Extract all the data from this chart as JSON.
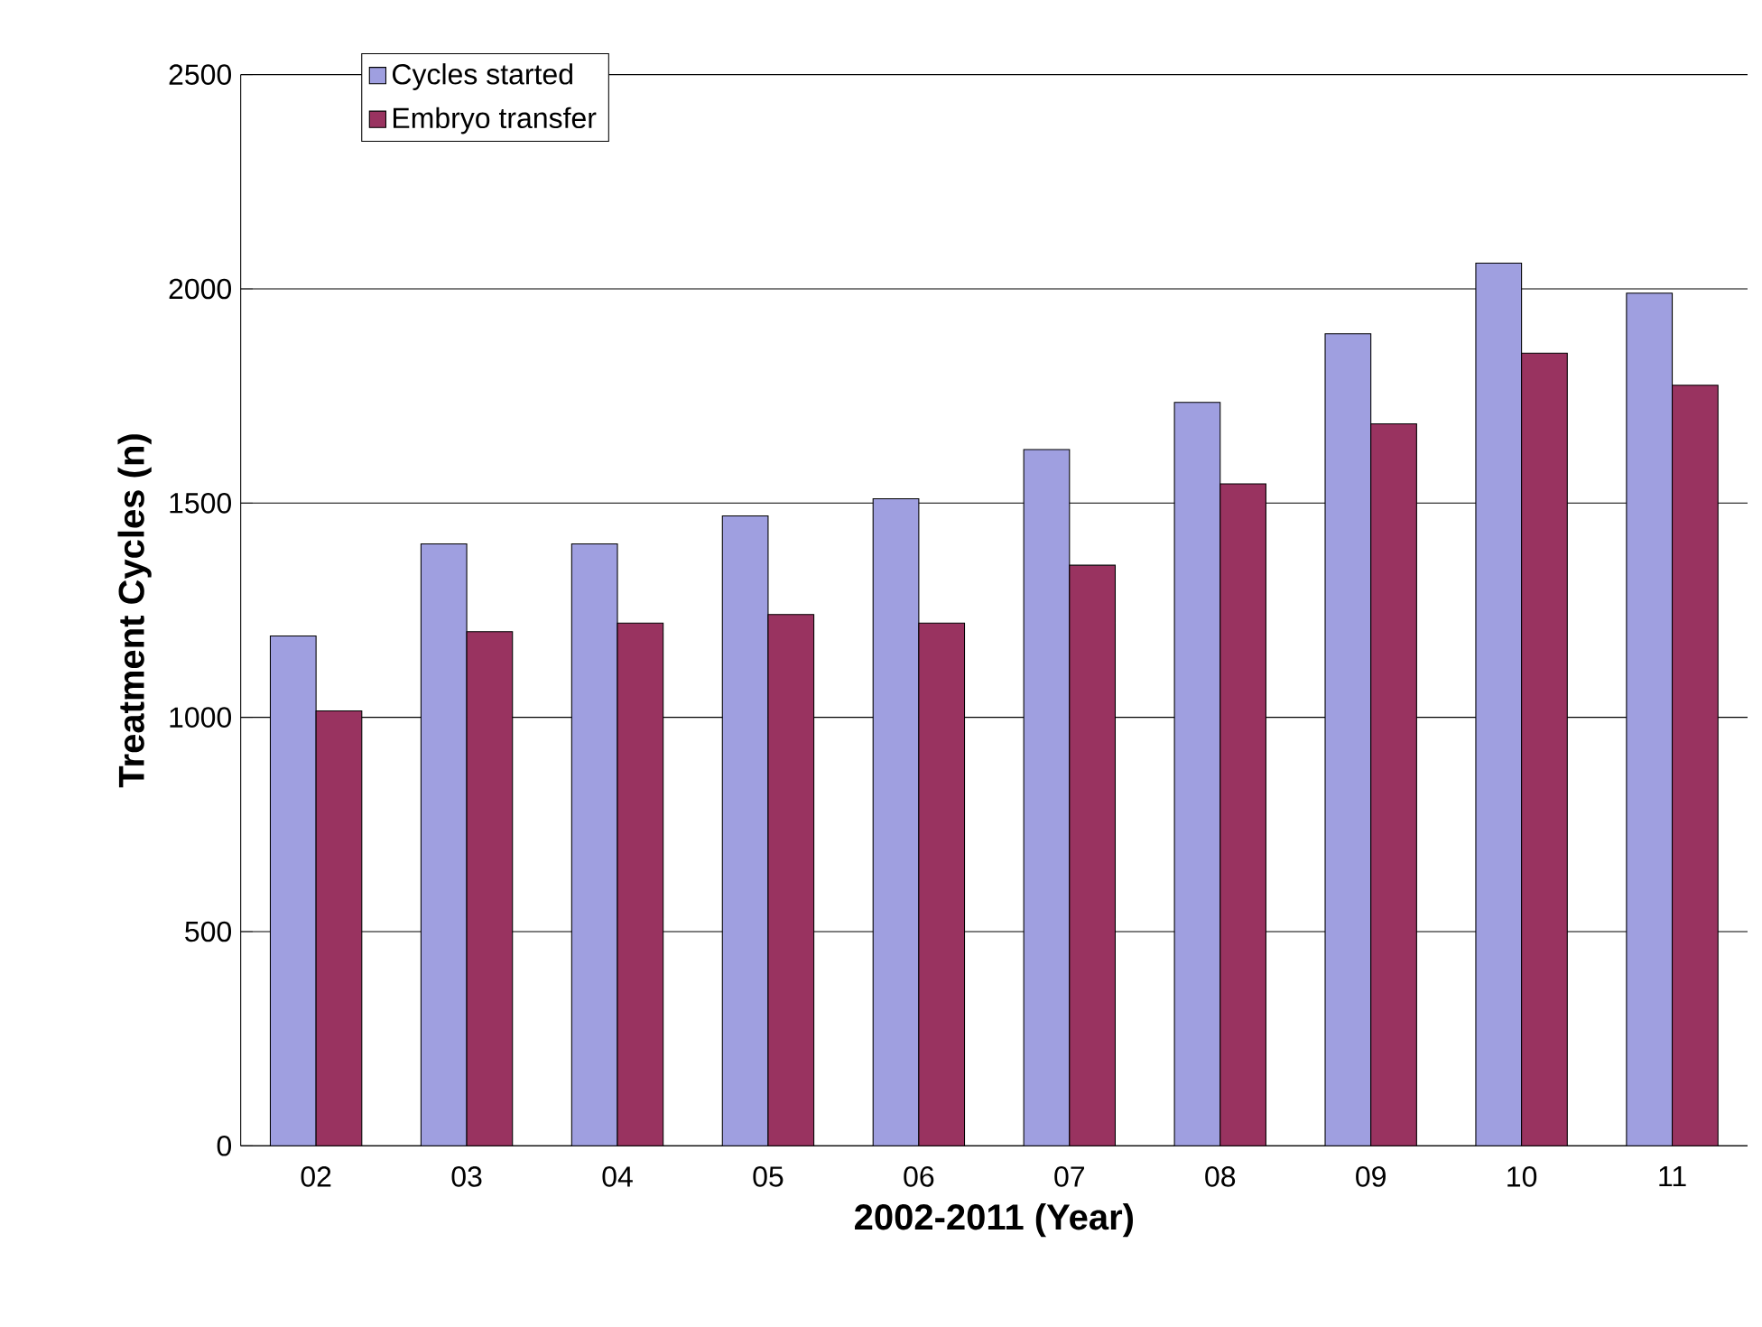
{
  "chart_data": {
    "type": "bar",
    "xlabel": "2002-2011 (Year)",
    "ylabel": "Treatment Cycles (n)",
    "categories": [
      "02",
      "03",
      "04",
      "05",
      "06",
      "07",
      "08",
      "09",
      "10",
      "11"
    ],
    "series": [
      {
        "name": "Cycles started",
        "color": "#9f9fe0",
        "values": [
          1190,
          1405,
          1405,
          1470,
          1510,
          1625,
          1735,
          1895,
          2060,
          1990
        ]
      },
      {
        "name": "Embryo transfer",
        "color": "#993360",
        "values": [
          1015,
          1200,
          1220,
          1240,
          1220,
          1355,
          1545,
          1685,
          1850,
          1775
        ]
      }
    ],
    "ylim": [
      0,
      2500
    ],
    "yticks": [
      0,
      500,
      1000,
      1500,
      2000,
      2500
    ],
    "grid": "y",
    "legend": "top left"
  }
}
